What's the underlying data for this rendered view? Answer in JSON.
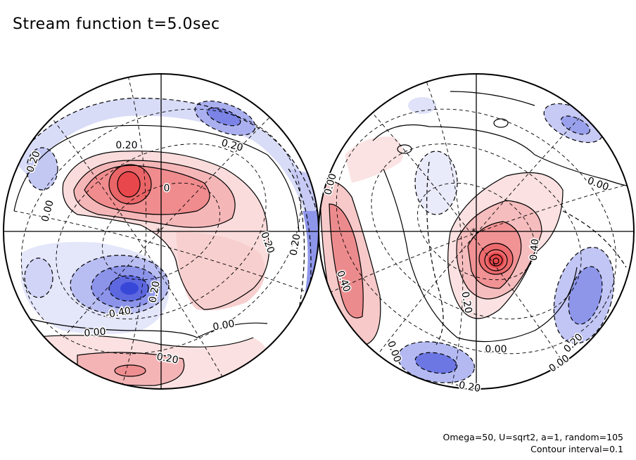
{
  "title": "Stream function t=5.0sec",
  "footer": {
    "params": "Omega=50, U=sqrt2, a=1, random=105",
    "interval": "Contour interval=0.1"
  },
  "colors": {
    "positive": "#e8474b",
    "negative": "#3747d8",
    "line": "#000000"
  },
  "chart_data": {
    "type": "contour",
    "projection": "orthographic hemispheres (two views)",
    "contour_interval": 0.1,
    "panels": [
      {
        "name": "left hemisphere",
        "labels": [
          "0.20",
          "0.20",
          "0.20",
          "0",
          "0.00",
          "0.20",
          "0.20",
          "0.20",
          "-0.40",
          "0.00",
          "0.00",
          "0.20"
        ],
        "extrema": [
          {
            "sign": "positive",
            "peak": 0.5
          },
          {
            "sign": "negative",
            "peak": -0.6
          },
          {
            "sign": "negative",
            "peak": -0.3
          },
          {
            "sign": "positive",
            "peak": 0.3
          }
        ]
      },
      {
        "name": "right hemisphere",
        "labels": [
          "0.00",
          "0.00",
          "0.40",
          "0.40",
          "0.20",
          "0.00",
          "0.00",
          "0.20",
          "0.00",
          "-0.20"
        ],
        "extrema": [
          {
            "sign": "positive",
            "peak": 0.9
          },
          {
            "sign": "positive",
            "peak": 0.5
          },
          {
            "sign": "negative",
            "peak": -0.4
          },
          {
            "sign": "negative",
            "peak": -0.4
          },
          {
            "sign": "negative",
            "peak": -0.2
          }
        ]
      }
    ]
  }
}
